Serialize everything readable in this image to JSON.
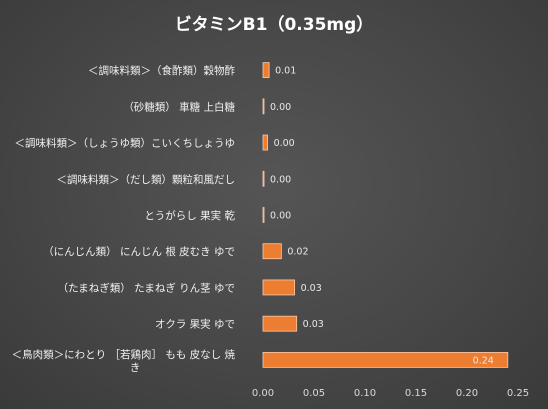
{
  "chart_data": {
    "type": "bar",
    "orientation": "horizontal",
    "title": "ビタミンB1（0.35mg）",
    "categories": [
      "＜調味料類＞（食酢類）穀物酢",
      "（砂糖類） 車糖 上白糖",
      "＜調味料類＞（しょうゆ類）こいくちしょうゆ",
      "＜調味料類＞（だし類）顆粒和風だし",
      "とうがらし 果実 乾",
      "（にんじん類） にんじん 根 皮むき ゆで",
      "（たまねぎ類） たまねぎ りん茎 ゆで",
      "オクラ 果実 ゆで",
      "＜鳥肉類＞にわとり ［若鶏肉］ もも 皮なし 焼き"
    ],
    "values": [
      0.006,
      0.0005,
      0.0045,
      0.001,
      0.001,
      0.018,
      0.031,
      0.033,
      0.24
    ],
    "data_labels": [
      "0.01",
      "0.00",
      "0.00",
      "0.00",
      "0.00",
      "0.02",
      "0.03",
      "0.03",
      "0.24"
    ],
    "xlim": [
      0,
      0.25
    ],
    "xticks": [
      "0.00",
      "0.05",
      "0.10",
      "0.15",
      "0.20",
      "0.25"
    ],
    "xlabel": "",
    "ylabel": "",
    "grid": false,
    "bar_color": "#ed7d31",
    "bar_edge_color": "#f8cbad"
  }
}
